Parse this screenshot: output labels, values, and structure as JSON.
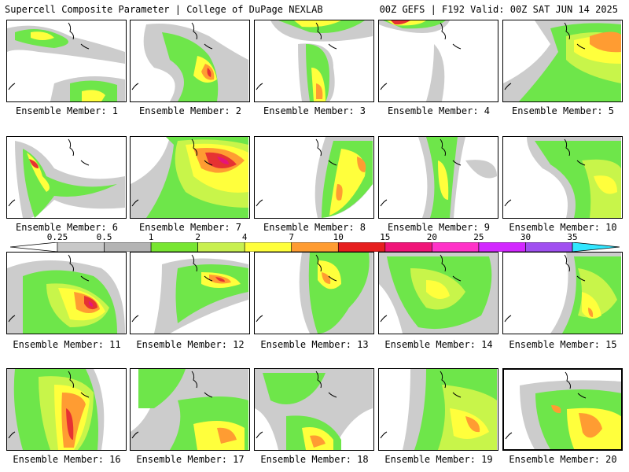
{
  "header": {
    "left_title": "Supercell Composite Parameter | College of DuPage NEXLAB",
    "right_title": "00Z GEFS | F192 Valid: 00Z SAT JUN 14 2025"
  },
  "colorbar": {
    "labels": [
      "0.25",
      "0.5",
      "1",
      "2",
      "4",
      "7",
      "10",
      "15",
      "20",
      "25",
      "30",
      "35"
    ],
    "colors": [
      "#c8c8c8",
      "#b4b4b4",
      "#78e632",
      "#c8f050",
      "#ffff3c",
      "#ff9c32",
      "#e61e1e",
      "#f01478",
      "#ff32c8",
      "#d228ff",
      "#a050f0",
      "#32e6ff"
    ]
  },
  "panel_colors": {
    "gray": "#cccccc",
    "green": "#6ee64a",
    "lime": "#c8f54a",
    "yellow": "#ffff3c",
    "orange": "#ff9c32",
    "red": "#e63232",
    "magenta": "#e6147a",
    "coast": "#000000"
  },
  "panels": [
    {
      "label": "Ensemble Member: 1"
    },
    {
      "label": "Ensemble Member: 2"
    },
    {
      "label": "Ensemble Member: 3"
    },
    {
      "label": "Ensemble Member: 4"
    },
    {
      "label": "Ensemble Member: 5"
    },
    {
      "label": "Ensemble Member: 6"
    },
    {
      "label": "Ensemble Member: 7"
    },
    {
      "label": "Ensemble Member: 8"
    },
    {
      "label": "Ensemble Member: 9"
    },
    {
      "label": "Ensemble Member: 10"
    },
    {
      "label": "Ensemble Member: 11"
    },
    {
      "label": "Ensemble Member: 12"
    },
    {
      "label": "Ensemble Member: 13"
    },
    {
      "label": "Ensemble Member: 14"
    },
    {
      "label": "Ensemble Member: 15"
    },
    {
      "label": "Ensemble Member: 16"
    },
    {
      "label": "Ensemble Member: 17"
    },
    {
      "label": "Ensemble Member: 18"
    },
    {
      "label": "Ensemble Member: 19"
    },
    {
      "label": "Ensemble Member: 20"
    }
  ]
}
